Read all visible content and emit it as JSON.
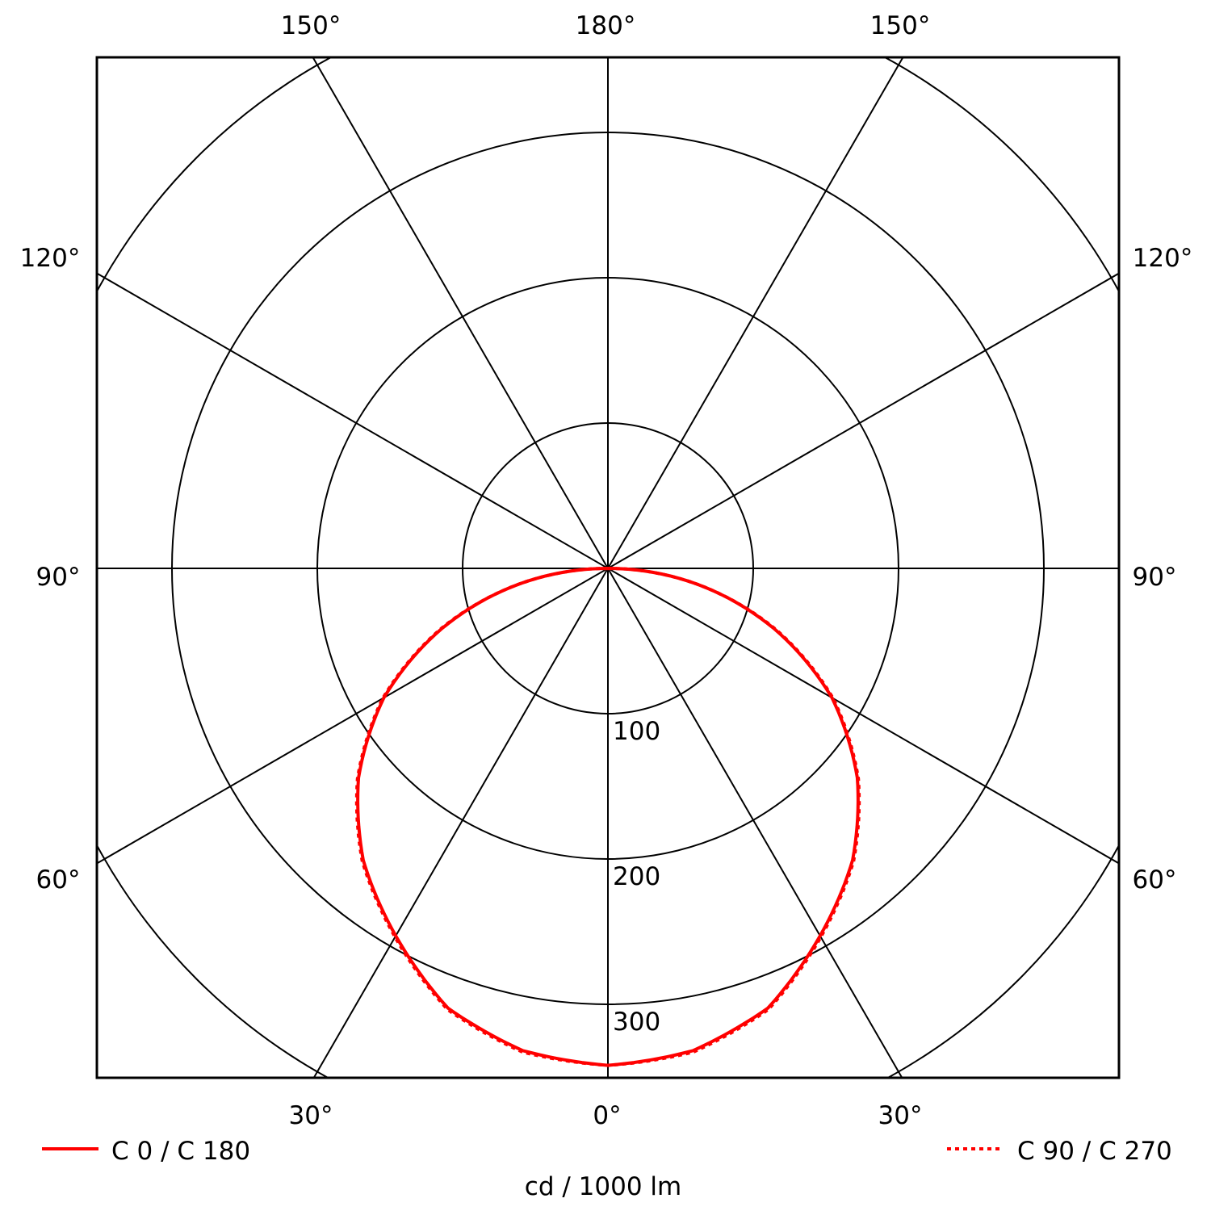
{
  "chart_data": {
    "type": "polar",
    "unit_label": "cd / 1000 lm",
    "radial_ticks": [
      100,
      200,
      300
    ],
    "r_max": 350,
    "angle_labels": {
      "top": [
        "150°",
        "180°",
        "150°"
      ],
      "left": [
        "120°",
        "90°",
        "60°"
      ],
      "right": [
        "120°",
        "90°",
        "60°"
      ],
      "bottom": [
        "30°",
        "0°",
        "30°"
      ]
    },
    "angle_step_deg": 30,
    "grid": true,
    "legend_placement": "bottom",
    "angles_deg": [
      0,
      10,
      20,
      30,
      40,
      50,
      60,
      70,
      80,
      90
    ],
    "series": [
      {
        "name": "C 0 / C 180",
        "style": "solid",
        "color": "#ff0000",
        "values": [
          342,
          337,
          322,
          292,
          262,
          224,
          178,
          122,
          62,
          0
        ]
      },
      {
        "name": "C 90 / C 270",
        "style": "dotted",
        "color": "#ff0000",
        "values": [
          342,
          338,
          323,
          293,
          263,
          225,
          179,
          123,
          62,
          0
        ]
      }
    ]
  }
}
